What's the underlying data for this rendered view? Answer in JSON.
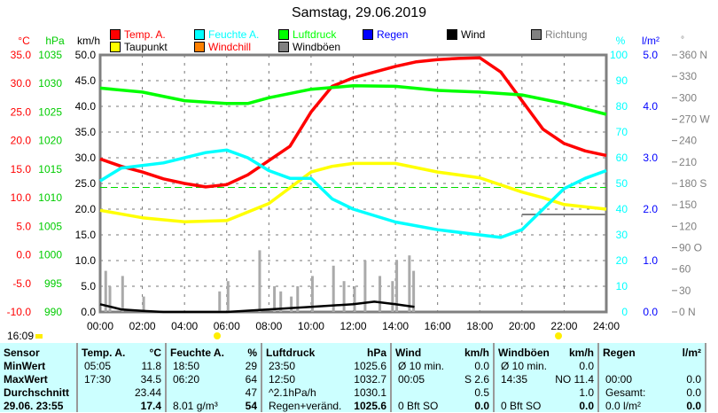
{
  "chart_data": {
    "type": "line",
    "title": "Samstag, 29.06.2019",
    "legend": [
      {
        "label": "Temp. A.",
        "color": "#ff0000"
      },
      {
        "label": "Feuchte A.",
        "color": "#00ffff"
      },
      {
        "label": "Luftdruck",
        "color": "#00ff00"
      },
      {
        "label": "Regen",
        "color": "#0000ff"
      },
      {
        "label": "Wind",
        "color": "#000000"
      },
      {
        "label": "Richtung",
        "color": "#808080"
      },
      {
        "label": "Taupunkt",
        "color": "#ffff00"
      },
      {
        "label": "Windchill",
        "color": "#ff8000"
      },
      {
        "label": "Windböen",
        "color": "#808080"
      }
    ],
    "axes": {
      "temp": {
        "unit": "°C",
        "ticks": [
          "35.0",
          "30.0",
          "25.0",
          "20.0",
          "15.0",
          "10.0",
          "5.0",
          "0.0",
          "-5.0",
          "-10.0"
        ],
        "range": [
          -10,
          35
        ]
      },
      "pressure": {
        "unit": "hPa",
        "ticks": [
          "1035",
          "1030",
          "1025",
          "1020",
          "1015",
          "1010",
          "1005",
          "1000",
          "995",
          "990"
        ],
        "range": [
          990,
          1035
        ]
      },
      "wind": {
        "unit": "km/h",
        "ticks": [
          "50.0",
          "45.0",
          "40.0",
          "35.0",
          "30.0",
          "25.0",
          "20.0",
          "15.0",
          "10.0",
          "5.0",
          "0.0"
        ],
        "range": [
          0,
          50
        ]
      },
      "humidity": {
        "unit": "%",
        "ticks": [
          "100",
          "90",
          "80",
          "70",
          "60",
          "50",
          "40",
          "30",
          "20",
          "10",
          "0"
        ],
        "range": [
          0,
          100
        ]
      },
      "rain": {
        "unit": "l/m²",
        "ticks": [
          "5.0",
          "4.0",
          "3.0",
          "2.0",
          "1.0",
          "0.0"
        ],
        "range": [
          0,
          5
        ]
      },
      "direction": {
        "unit": "°",
        "ticks": [
          "360 N",
          "330",
          "300",
          "270 W",
          "240",
          "210",
          "180 S",
          "150",
          "120",
          "90 O",
          "60",
          "30",
          "0  N"
        ],
        "range": [
          0,
          360
        ]
      }
    },
    "x_ticks": [
      "00:00",
      "02:00",
      "04:00",
      "06:00",
      "08:00",
      "10:00",
      "12:00",
      "14:00",
      "16:00",
      "18:00",
      "20:00",
      "22:00",
      "24:00"
    ],
    "series": [
      {
        "name": "Temp. A.",
        "axis": "temp",
        "color": "#ff0000",
        "x": [
          0,
          1,
          2,
          3,
          4,
          5,
          6,
          7,
          8,
          9,
          10,
          11,
          12,
          13,
          14,
          15,
          16,
          17,
          18,
          19,
          20,
          21,
          22,
          23,
          24
        ],
        "y": [
          16.8,
          15.5,
          14.5,
          13.3,
          12.5,
          11.9,
          12.3,
          14,
          16.5,
          19,
          25,
          29.5,
          31,
          32,
          33,
          33.8,
          34.2,
          34.4,
          34.5,
          32,
          27,
          22,
          19.5,
          18.2,
          17.4
        ]
      },
      {
        "name": "Taupunkt",
        "axis": "temp",
        "color": "#ffff00",
        "x": [
          0,
          2,
          4,
          6,
          8,
          10,
          11,
          12,
          14,
          16,
          18,
          20,
          21,
          22,
          24
        ],
        "y": [
          7.8,
          6.5,
          5.8,
          6,
          9,
          14.5,
          15.5,
          16,
          16,
          14.5,
          13.5,
          11,
          10,
          8.8,
          8
        ]
      },
      {
        "name": "Luftdruck",
        "axis": "temp",
        "color": "#00ff00",
        "x": [
          0,
          2,
          4,
          6,
          7,
          8,
          10,
          12,
          14,
          16,
          18,
          20,
          22,
          24
        ],
        "y": [
          29.2,
          28.5,
          27,
          26.5,
          26.5,
          27.5,
          29,
          29.6,
          29.5,
          28.8,
          28.5,
          28,
          26.5,
          24.6
        ]
      },
      {
        "name": "Feuchte A.",
        "axis": "humidity",
        "color": "#00ffff",
        "x": [
          0,
          1,
          3,
          5,
          6,
          7,
          8,
          9,
          10,
          11,
          12,
          14,
          16,
          18,
          19,
          20,
          21,
          22,
          23,
          24
        ],
        "y": [
          51,
          56,
          58,
          62,
          63,
          60,
          55,
          52,
          52,
          44,
          40,
          35,
          32,
          30,
          29,
          32,
          40,
          48,
          52,
          55
        ]
      },
      {
        "name": "Wind",
        "axis": "wind",
        "color": "#000000",
        "x": [
          0,
          0.5,
          1,
          2,
          3,
          4,
          6,
          8,
          10,
          12,
          13,
          14,
          14.9
        ],
        "y": [
          1.5,
          1,
          0.5,
          0.2,
          0,
          0,
          0,
          0.5,
          1,
          1.5,
          2,
          1.5,
          1
        ]
      }
    ],
    "current_time": "16:09"
  },
  "table": {
    "columns": [
      {
        "header": "Sensor",
        "unit": "",
        "rows": [
          [
            "MinWert",
            ""
          ],
          [
            "MaxWert",
            ""
          ],
          [
            "Durchschnitt",
            ""
          ],
          [
            "29.06. 23:55",
            ""
          ]
        ]
      },
      {
        "header": "Temp. A.",
        "unit": "°C",
        "rows": [
          [
            "05:05",
            "11.8"
          ],
          [
            "17:30",
            "34.5"
          ],
          [
            "",
            "23.44"
          ],
          [
            "",
            "17.4"
          ]
        ]
      },
      {
        "header": "Feuchte A.",
        "unit": "%",
        "rows": [
          [
            "18:50",
            "29"
          ],
          [
            "06:20",
            "64"
          ],
          [
            "",
            "47"
          ],
          [
            "8.01 g/m³",
            "54"
          ]
        ]
      },
      {
        "header": "Luftdruck",
        "unit": "hPa",
        "rows": [
          [
            "23:50",
            "1025.6"
          ],
          [
            "12:50",
            "1032.7"
          ],
          [
            "^2.1hPa/h",
            "1030.1"
          ],
          [
            "Regen+veränd.",
            "1025.6"
          ]
        ]
      },
      {
        "header": "Wind",
        "unit": "km/h",
        "rows": [
          [
            "Ø 10 min.",
            "0.0"
          ],
          [
            "00:05",
            "S 2.6"
          ],
          [
            "",
            "0.5"
          ],
          [
            "0 Bft SO",
            "0.0"
          ]
        ]
      },
      {
        "header": "Windböen",
        "unit": "km/h",
        "rows": [
          [
            "Ø 10 min.",
            "0.0"
          ],
          [
            "14:35",
            "NO 11.4"
          ],
          [
            "",
            "1.0"
          ],
          [
            "0 Bft SO",
            "0.0"
          ]
        ]
      },
      {
        "header": "Regen",
        "unit": "l/m²",
        "rows": [
          [
            "",
            ""
          ],
          [
            "00:00",
            "0.0"
          ],
          [
            "Gesamt:",
            "0.0"
          ],
          [
            "0.0 l/m²",
            "0.0"
          ]
        ]
      }
    ]
  }
}
